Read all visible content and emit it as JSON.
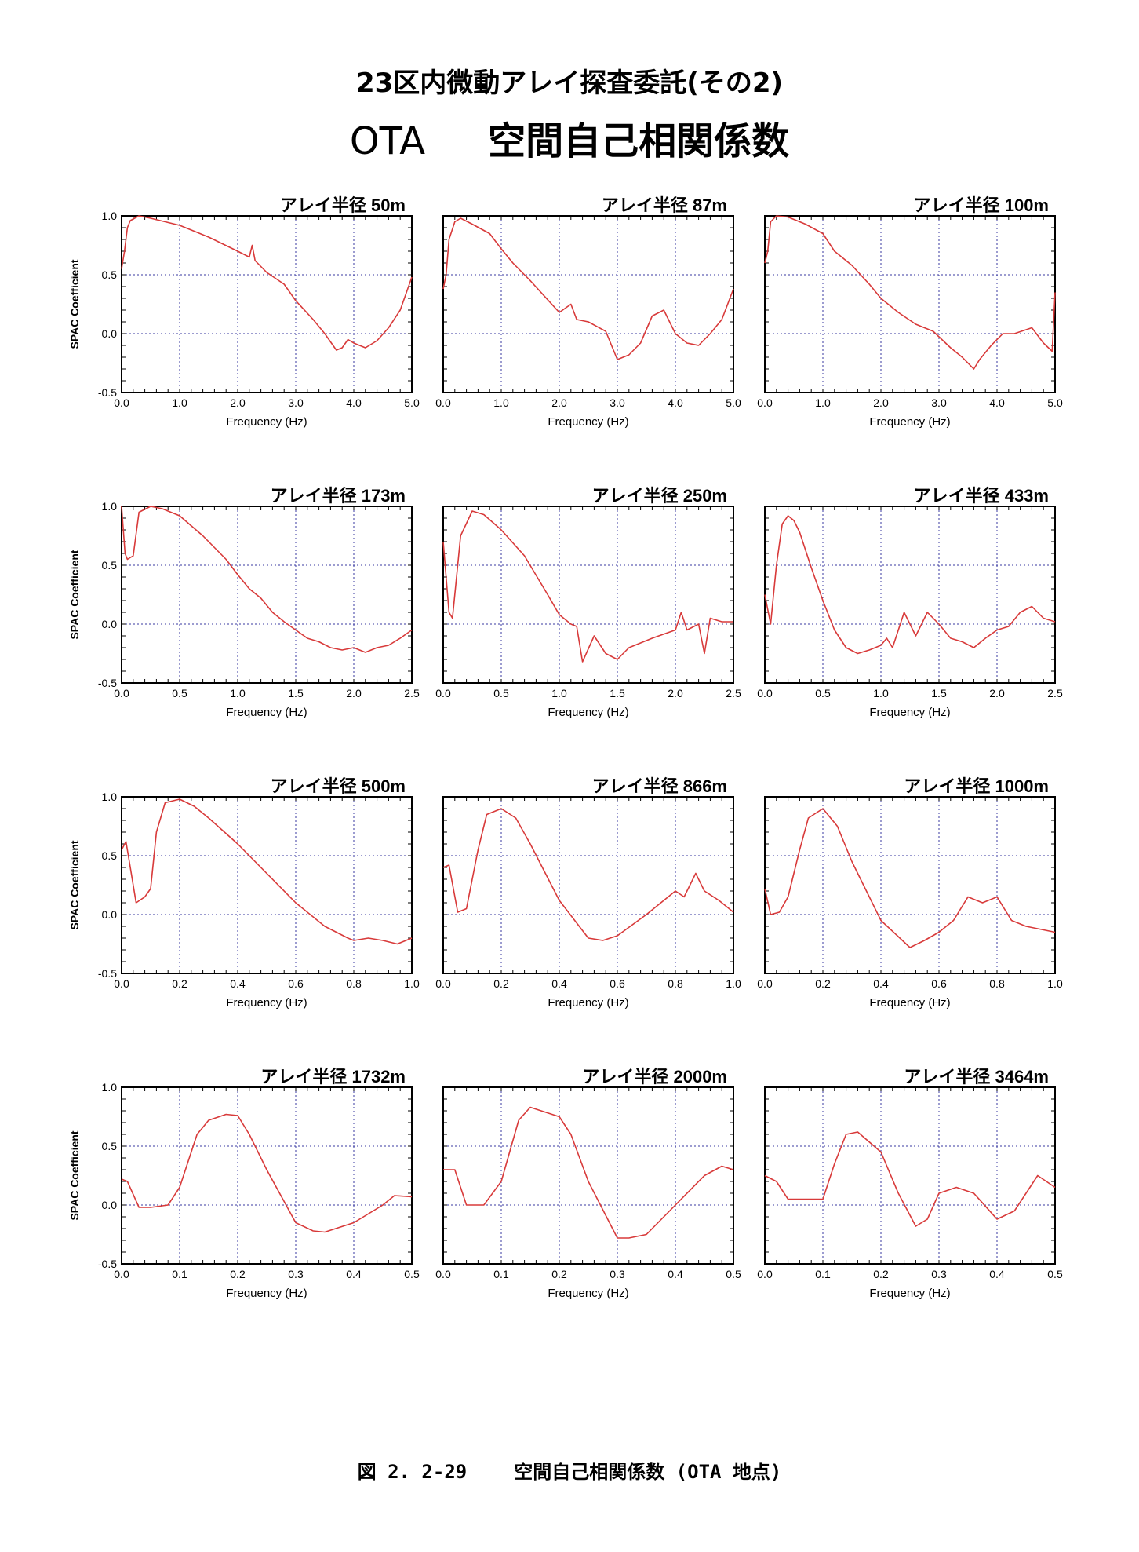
{
  "page": {
    "title_line1": "23区内微動アレイ探査委託(その2)",
    "title_site": "OTA",
    "title_line2": "空間自己相関係数",
    "caption_figure": "図 2. 2-29",
    "caption_text": "空間自己相関係数 (OTA 地点)"
  },
  "style": {
    "line_color": "#d83a3a",
    "grid_color": "#3a3aa0",
    "axis_color": "#000000"
  },
  "chart_data": [
    {
      "type": "line",
      "title": "アレイ半径 50m",
      "xlabel": "Frequency (Hz)",
      "ylabel": "SPAC Coefficient",
      "xlim": [
        0,
        5
      ],
      "ylim": [
        -0.5,
        1.0
      ],
      "xticks": [
        "0.0",
        "1.0",
        "2.0",
        "3.0",
        "4.0",
        "5.0"
      ],
      "yticks": [
        "-0.5",
        "0.0",
        "0.5",
        "1.0"
      ],
      "grid": true,
      "x": [
        0,
        0.05,
        0.1,
        0.15,
        0.3,
        0.5,
        1.0,
        1.5,
        2.0,
        2.2,
        2.25,
        2.3,
        2.5,
        2.8,
        3.0,
        3.3,
        3.5,
        3.7,
        3.8,
        3.9,
        4.0,
        4.2,
        4.4,
        4.6,
        4.8,
        5.0
      ],
      "y": [
        0.55,
        0.7,
        0.9,
        0.96,
        1.0,
        0.98,
        0.92,
        0.82,
        0.7,
        0.65,
        0.75,
        0.62,
        0.52,
        0.42,
        0.28,
        0.12,
        0.0,
        -0.14,
        -0.12,
        -0.05,
        -0.08,
        -0.12,
        -0.06,
        0.05,
        0.2,
        0.48
      ]
    },
    {
      "type": "line",
      "title": "アレイ半径 87m",
      "xlabel": "Frequency (Hz)",
      "xlim": [
        0,
        5
      ],
      "ylim": [
        -0.5,
        1.0
      ],
      "xticks": [
        "0.0",
        "1.0",
        "2.0",
        "3.0",
        "4.0",
        "5.0"
      ],
      "yticks": [
        "-0.5",
        "0.0",
        "0.5",
        "1.0"
      ],
      "grid": true,
      "x": [
        0,
        0.05,
        0.1,
        0.2,
        0.3,
        0.5,
        0.8,
        1.0,
        1.2,
        1.5,
        2.0,
        2.2,
        2.3,
        2.5,
        2.8,
        3.0,
        3.2,
        3.4,
        3.6,
        3.8,
        4.0,
        4.2,
        4.4,
        4.6,
        4.8,
        5.0
      ],
      "y": [
        0.38,
        0.5,
        0.8,
        0.95,
        0.98,
        0.93,
        0.85,
        0.72,
        0.6,
        0.45,
        0.18,
        0.25,
        0.12,
        0.1,
        0.02,
        -0.22,
        -0.18,
        -0.08,
        0.15,
        0.2,
        0.0,
        -0.08,
        -0.1,
        0.0,
        0.12,
        0.38
      ]
    },
    {
      "type": "line",
      "title": "アレイ半径 100m",
      "xlabel": "Frequency (Hz)",
      "xlim": [
        0,
        5
      ],
      "ylim": [
        -0.5,
        1.0
      ],
      "xticks": [
        "0.0",
        "1.0",
        "2.0",
        "3.0",
        "4.0",
        "5.0"
      ],
      "yticks": [
        "-0.5",
        "0.0",
        "0.5",
        "1.0"
      ],
      "grid": true,
      "x": [
        0,
        0.05,
        0.1,
        0.2,
        0.4,
        0.7,
        1.0,
        1.2,
        1.5,
        1.8,
        2.0,
        2.3,
        2.6,
        2.9,
        3.2,
        3.4,
        3.6,
        3.7,
        3.9,
        4.1,
        4.3,
        4.6,
        4.8,
        4.95,
        5.0
      ],
      "y": [
        0.6,
        0.7,
        0.95,
        1.0,
        0.99,
        0.93,
        0.85,
        0.7,
        0.58,
        0.42,
        0.3,
        0.18,
        0.08,
        0.02,
        -0.12,
        -0.2,
        -0.3,
        -0.22,
        -0.1,
        0.0,
        0.0,
        0.05,
        -0.08,
        -0.15,
        0.35
      ]
    },
    {
      "type": "line",
      "title": "アレイ半径 173m",
      "xlabel": "Frequency (Hz)",
      "ylabel": "SPAC Coefficient",
      "xlim": [
        0,
        2.5
      ],
      "ylim": [
        -0.5,
        1.0
      ],
      "xticks": [
        "0.0",
        "0.5",
        "1.0",
        "1.5",
        "2.0",
        "2.5"
      ],
      "yticks": [
        "-0.5",
        "0.0",
        "0.5",
        "1.0"
      ],
      "grid": true,
      "x": [
        0,
        0.03,
        0.05,
        0.1,
        0.15,
        0.25,
        0.35,
        0.5,
        0.7,
        0.9,
        1.0,
        1.1,
        1.2,
        1.3,
        1.4,
        1.5,
        1.6,
        1.7,
        1.8,
        1.9,
        2.0,
        2.1,
        2.2,
        2.3,
        2.4,
        2.5
      ],
      "y": [
        1.0,
        0.6,
        0.55,
        0.58,
        0.95,
        1.0,
        0.98,
        0.92,
        0.75,
        0.55,
        0.42,
        0.3,
        0.22,
        0.1,
        0.02,
        -0.05,
        -0.12,
        -0.15,
        -0.2,
        -0.22,
        -0.2,
        -0.24,
        -0.2,
        -0.18,
        -0.12,
        -0.05
      ]
    },
    {
      "type": "line",
      "title": "アレイ半径 250m",
      "xlabel": "Frequency (Hz)",
      "xlim": [
        0,
        2.5
      ],
      "ylim": [
        -0.5,
        1.0
      ],
      "xticks": [
        "0.0",
        "0.5",
        "1.0",
        "1.5",
        "2.0",
        "2.5"
      ],
      "yticks": [
        "-0.5",
        "0.0",
        "0.5",
        "1.0"
      ],
      "grid": true,
      "x": [
        0,
        0.05,
        0.08,
        0.15,
        0.25,
        0.35,
        0.5,
        0.7,
        0.9,
        1.0,
        1.1,
        1.15,
        1.2,
        1.3,
        1.4,
        1.5,
        1.6,
        1.8,
        2.0,
        2.05,
        2.1,
        2.2,
        2.25,
        2.3,
        2.4,
        2.5
      ],
      "y": [
        0.7,
        0.1,
        0.05,
        0.75,
        0.96,
        0.93,
        0.8,
        0.58,
        0.25,
        0.08,
        0.0,
        -0.02,
        -0.32,
        -0.1,
        -0.25,
        -0.3,
        -0.2,
        -0.12,
        -0.05,
        0.1,
        -0.05,
        0.0,
        -0.25,
        0.05,
        0.02,
        0.02
      ]
    },
    {
      "type": "line",
      "title": "アレイ半径 433m",
      "xlabel": "Frequency (Hz)",
      "xlim": [
        0,
        2.5
      ],
      "ylim": [
        -0.5,
        1.0
      ],
      "xticks": [
        "0.0",
        "0.5",
        "1.0",
        "1.5",
        "2.0",
        "2.5"
      ],
      "yticks": [
        "-0.5",
        "0.0",
        "0.5",
        "1.0"
      ],
      "grid": true,
      "x": [
        0,
        0.05,
        0.1,
        0.15,
        0.2,
        0.25,
        0.3,
        0.4,
        0.5,
        0.6,
        0.7,
        0.8,
        0.9,
        1.0,
        1.05,
        1.1,
        1.2,
        1.3,
        1.4,
        1.5,
        1.6,
        1.7,
        1.8,
        1.9,
        2.0,
        2.1,
        2.2,
        2.3,
        2.4,
        2.5
      ],
      "y": [
        0.25,
        0.0,
        0.5,
        0.85,
        0.92,
        0.88,
        0.78,
        0.48,
        0.2,
        -0.05,
        -0.2,
        -0.25,
        -0.22,
        -0.18,
        -0.12,
        -0.2,
        0.1,
        -0.1,
        0.1,
        0.0,
        -0.12,
        -0.15,
        -0.2,
        -0.12,
        -0.05,
        -0.02,
        0.1,
        0.15,
        0.05,
        0.02
      ]
    },
    {
      "type": "line",
      "title": "アレイ半径 500m",
      "xlabel": "Frequency (Hz)",
      "ylabel": "SPAC Coefficient",
      "xlim": [
        0,
        1.0
      ],
      "ylim": [
        -0.5,
        1.0
      ],
      "xticks": [
        "0.0",
        "0.2",
        "0.4",
        "0.6",
        "0.8",
        "1.0"
      ],
      "yticks": [
        "-0.5",
        "0.0",
        "0.5",
        "1.0"
      ],
      "grid": true,
      "x": [
        0,
        0.015,
        0.03,
        0.05,
        0.08,
        0.1,
        0.12,
        0.15,
        0.2,
        0.25,
        0.3,
        0.4,
        0.5,
        0.6,
        0.7,
        0.78,
        0.8,
        0.85,
        0.9,
        0.95,
        1.0
      ],
      "y": [
        0.55,
        0.62,
        0.4,
        0.1,
        0.15,
        0.22,
        0.7,
        0.95,
        0.98,
        0.92,
        0.82,
        0.6,
        0.35,
        0.1,
        -0.1,
        -0.2,
        -0.22,
        -0.2,
        -0.22,
        -0.25,
        -0.2
      ]
    },
    {
      "type": "line",
      "title": "アレイ半径 866m",
      "xlabel": "Frequency (Hz)",
      "xlim": [
        0,
        1.0
      ],
      "ylim": [
        -0.5,
        1.0
      ],
      "xticks": [
        "0.0",
        "0.2",
        "0.4",
        "0.6",
        "0.8",
        "1.0"
      ],
      "yticks": [
        "-0.5",
        "0.0",
        "0.5",
        "1.0"
      ],
      "grid": true,
      "x": [
        0,
        0.02,
        0.05,
        0.08,
        0.12,
        0.15,
        0.2,
        0.25,
        0.3,
        0.4,
        0.5,
        0.55,
        0.6,
        0.7,
        0.75,
        0.8,
        0.83,
        0.87,
        0.9,
        0.95,
        1.0
      ],
      "y": [
        0.4,
        0.42,
        0.02,
        0.05,
        0.55,
        0.85,
        0.9,
        0.82,
        0.6,
        0.12,
        -0.2,
        -0.22,
        -0.18,
        0.0,
        0.1,
        0.2,
        0.15,
        0.35,
        0.2,
        0.12,
        0.02
      ]
    },
    {
      "type": "line",
      "title": "アレイ半径 1000m",
      "xlabel": "Frequency (Hz)",
      "xlim": [
        0,
        1.0
      ],
      "ylim": [
        -0.5,
        1.0
      ],
      "xticks": [
        "0.0",
        "0.2",
        "0.4",
        "0.6",
        "0.8",
        "1.0"
      ],
      "yticks": [
        "-0.5",
        "0.0",
        "0.5",
        "1.0"
      ],
      "grid": true,
      "x": [
        0,
        0.02,
        0.05,
        0.08,
        0.12,
        0.15,
        0.2,
        0.25,
        0.3,
        0.35,
        0.4,
        0.5,
        0.55,
        0.6,
        0.65,
        0.7,
        0.75,
        0.8,
        0.85,
        0.9,
        1.0
      ],
      "y": [
        0.22,
        0.0,
        0.02,
        0.15,
        0.55,
        0.82,
        0.9,
        0.75,
        0.45,
        0.2,
        -0.05,
        -0.28,
        -0.22,
        -0.15,
        -0.05,
        0.15,
        0.1,
        0.15,
        -0.05,
        -0.1,
        -0.15
      ]
    },
    {
      "type": "line",
      "title": "アレイ半径 1732m",
      "xlabel": "Frequency (Hz)",
      "ylabel": "SPAC Coefficient",
      "xlim": [
        0,
        0.5
      ],
      "ylim": [
        -0.5,
        1.0
      ],
      "xticks": [
        "0.0",
        "0.1",
        "0.2",
        "0.3",
        "0.4",
        "0.5"
      ],
      "yticks": [
        "-0.5",
        "0.0",
        "0.5",
        "1.0"
      ],
      "grid": true,
      "x": [
        0,
        0.01,
        0.03,
        0.05,
        0.08,
        0.1,
        0.13,
        0.15,
        0.18,
        0.2,
        0.22,
        0.25,
        0.3,
        0.33,
        0.35,
        0.4,
        0.45,
        0.47,
        0.5
      ],
      "y": [
        0.22,
        0.2,
        -0.02,
        -0.02,
        0.0,
        0.15,
        0.6,
        0.72,
        0.77,
        0.76,
        0.6,
        0.3,
        -0.15,
        -0.22,
        -0.23,
        -0.15,
        0.0,
        0.08,
        0.07
      ]
    },
    {
      "type": "line",
      "title": "アレイ半径 2000m",
      "xlabel": "Frequency (Hz)",
      "xlim": [
        0,
        0.5
      ],
      "ylim": [
        -0.5,
        1.0
      ],
      "xticks": [
        "0.0",
        "0.1",
        "0.2",
        "0.3",
        "0.4",
        "0.5"
      ],
      "yticks": [
        "-0.5",
        "0.0",
        "0.5",
        "1.0"
      ],
      "grid": true,
      "x": [
        0,
        0.02,
        0.04,
        0.07,
        0.1,
        0.13,
        0.15,
        0.2,
        0.22,
        0.25,
        0.3,
        0.32,
        0.35,
        0.4,
        0.45,
        0.48,
        0.5
      ],
      "y": [
        0.3,
        0.3,
        0.0,
        0.0,
        0.2,
        0.72,
        0.83,
        0.75,
        0.6,
        0.2,
        -0.28,
        -0.28,
        -0.25,
        0.0,
        0.25,
        0.33,
        0.3
      ]
    },
    {
      "type": "line",
      "title": "アレイ半径 3464m",
      "xlabel": "Frequency (Hz)",
      "xlim": [
        0,
        0.5
      ],
      "ylim": [
        -0.5,
        1.0
      ],
      "xticks": [
        "0.0",
        "0.1",
        "0.2",
        "0.3",
        "0.4",
        "0.5"
      ],
      "yticks": [
        "-0.5",
        "0.0",
        "0.5",
        "1.0"
      ],
      "grid": true,
      "x": [
        0,
        0.02,
        0.04,
        0.07,
        0.1,
        0.12,
        0.14,
        0.16,
        0.2,
        0.23,
        0.26,
        0.28,
        0.3,
        0.33,
        0.36,
        0.4,
        0.43,
        0.47,
        0.5
      ],
      "y": [
        0.25,
        0.2,
        0.05,
        0.05,
        0.05,
        0.35,
        0.6,
        0.62,
        0.45,
        0.1,
        -0.18,
        -0.12,
        0.1,
        0.15,
        0.1,
        -0.12,
        -0.05,
        0.25,
        0.15
      ]
    }
  ]
}
